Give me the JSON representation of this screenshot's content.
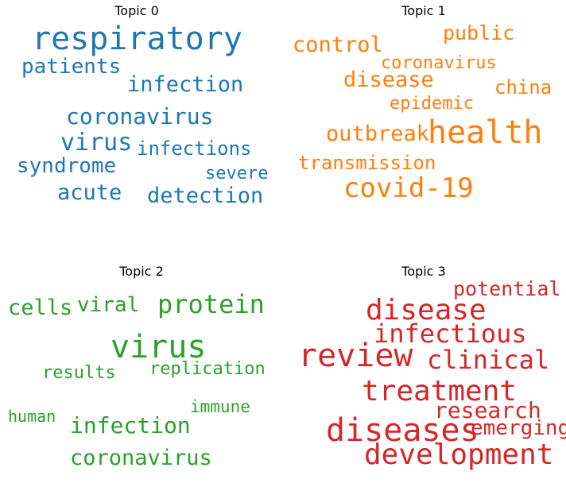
{
  "chart_data": [
    {
      "type": "wordcloud",
      "title": "Topic 0",
      "color": "#1f77b4",
      "words": [
        {
          "text": "respiratory",
          "weight": 1.0
        },
        {
          "text": "patients",
          "weight": 0.55
        },
        {
          "text": "infection",
          "weight": 0.57
        },
        {
          "text": "coronavirus",
          "weight": 0.62
        },
        {
          "text": "virus",
          "weight": 0.65
        },
        {
          "text": "infections",
          "weight": 0.52
        },
        {
          "text": "syndrome",
          "weight": 0.55
        },
        {
          "text": "severe",
          "weight": 0.47
        },
        {
          "text": "acute",
          "weight": 0.57
        },
        {
          "text": "detection",
          "weight": 0.57
        }
      ]
    },
    {
      "type": "wordcloud",
      "title": "Topic 1",
      "color": "#ff7f0e",
      "words": [
        {
          "text": "control",
          "weight": 0.55
        },
        {
          "text": "public",
          "weight": 0.52
        },
        {
          "text": "coronavirus",
          "weight": 0.47
        },
        {
          "text": "disease",
          "weight": 0.55
        },
        {
          "text": "china",
          "weight": 0.52
        },
        {
          "text": "epidemic",
          "weight": 0.47
        },
        {
          "text": "outbreak",
          "weight": 0.55
        },
        {
          "text": "health",
          "weight": 0.87
        },
        {
          "text": "transmission",
          "weight": 0.5
        },
        {
          "text": "covid-19",
          "weight": 0.75
        }
      ]
    },
    {
      "type": "wordcloud",
      "title": "Topic 2",
      "color": "#2ca02c",
      "words": [
        {
          "text": "cells",
          "weight": 0.57
        },
        {
          "text": "viral",
          "weight": 0.55
        },
        {
          "text": "protein",
          "weight": 0.7
        },
        {
          "text": "virus",
          "weight": 0.87
        },
        {
          "text": "results",
          "weight": 0.47
        },
        {
          "text": "replication",
          "weight": 0.47
        },
        {
          "text": "immune",
          "weight": 0.45
        },
        {
          "text": "human",
          "weight": 0.42
        },
        {
          "text": "infection",
          "weight": 0.6
        },
        {
          "text": "coronavirus",
          "weight": 0.57
        }
      ]
    },
    {
      "type": "wordcloud",
      "title": "Topic 3",
      "color": "#d62728",
      "words": [
        {
          "text": "potential",
          "weight": 0.52
        },
        {
          "text": "disease",
          "weight": 0.77
        },
        {
          "text": "infectious",
          "weight": 0.67
        },
        {
          "text": "review",
          "weight": 0.9
        },
        {
          "text": "clinical",
          "weight": 0.67
        },
        {
          "text": "treatment",
          "weight": 0.77
        },
        {
          "text": "research",
          "weight": 0.6
        },
        {
          "text": "diseases",
          "weight": 0.85
        },
        {
          "text": "emerging",
          "weight": 0.55
        },
        {
          "text": "development",
          "weight": 0.77
        }
      ]
    }
  ]
}
